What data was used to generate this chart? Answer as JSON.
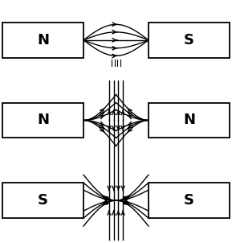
{
  "bg_color": "white",
  "box_color": "black",
  "line_color": "black",
  "label_fontsize": 13,
  "diagrams": [
    {
      "left": "N",
      "right": "S",
      "type": "NS"
    },
    {
      "left": "N",
      "right": "N",
      "type": "NN"
    },
    {
      "left": "S",
      "right": "S",
      "type": "SS"
    }
  ],
  "figsize": [
    2.89,
    3.02
  ],
  "dpi": 100
}
